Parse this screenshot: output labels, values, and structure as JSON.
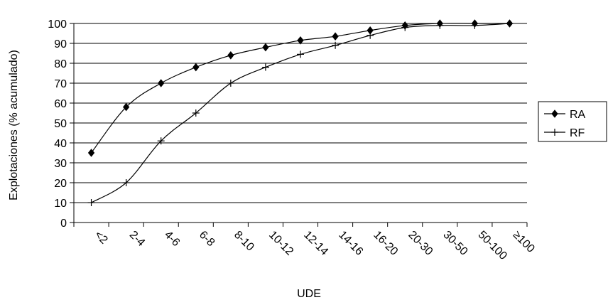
{
  "chart_data": {
    "type": "line",
    "title": "",
    "xlabel": "UDE",
    "ylabel": "Explotaciones (% acumulado)",
    "categories": [
      "<2",
      "2-4",
      "4-6",
      "6-8",
      "8-10",
      "10-12",
      "12-14",
      "14-16",
      "16-20",
      "20-30",
      "30-50",
      "50-100",
      "≥100"
    ],
    "ylim": [
      0,
      100
    ],
    "yticks": [
      0,
      10,
      20,
      30,
      40,
      50,
      60,
      70,
      80,
      90,
      100
    ],
    "grid": "horizontal",
    "legend_position": "right",
    "series": [
      {
        "name": "RA",
        "marker": "diamond",
        "values": [
          35,
          58,
          70,
          78,
          84,
          88,
          91.5,
          93.5,
          96.5,
          99,
          100,
          100,
          100
        ]
      },
      {
        "name": "RF",
        "marker": "plus",
        "values": [
          10,
          20,
          41,
          55,
          70,
          78,
          84.5,
          89,
          94,
          98,
          99,
          99,
          100
        ]
      }
    ]
  }
}
